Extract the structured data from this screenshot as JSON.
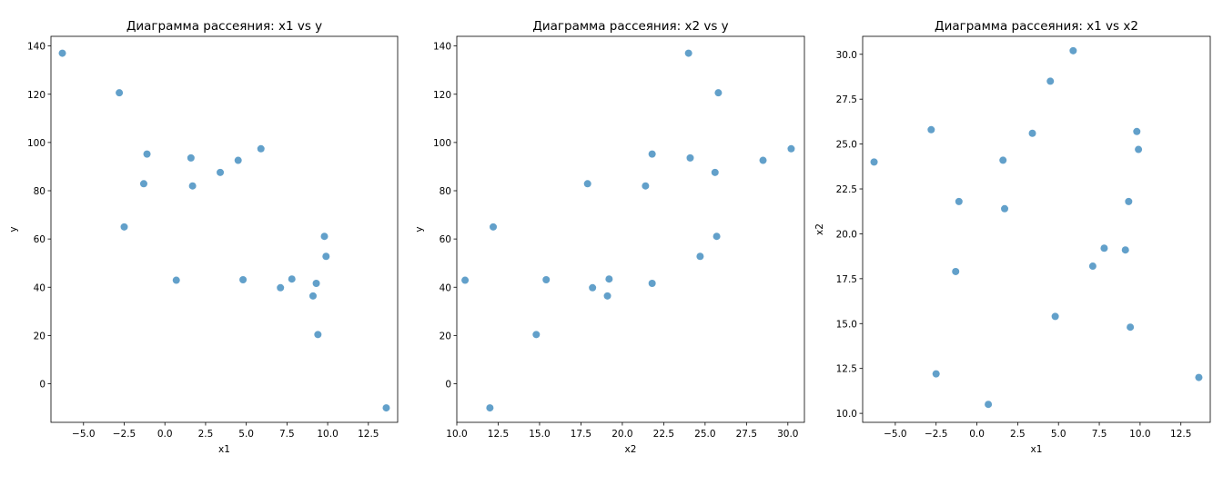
{
  "chart_data": [
    {
      "type": "scatter",
      "title": "Диаграмма рассеяния: x1 vs y",
      "xlabel": "x1",
      "ylabel": "y",
      "xlim": [
        -7.0,
        14.3
      ],
      "ylim": [
        -16.0,
        144.0
      ],
      "xticks": [
        -5.0,
        -2.5,
        0.0,
        2.5,
        5.0,
        7.5,
        10.0,
        12.5
      ],
      "xtick_labels": [
        "−5.0",
        "−2.5",
        "0.0",
        "2.5",
        "5.0",
        "7.5",
        "10.0",
        "12.5"
      ],
      "yticks": [
        0,
        20,
        40,
        60,
        80,
        100,
        120,
        140
      ],
      "ytick_labels": [
        "0",
        "20",
        "40",
        "60",
        "80",
        "100",
        "120",
        "140"
      ],
      "grid": false,
      "marker_color": "#1f77b4",
      "x": [
        -6.3,
        -2.8,
        -2.5,
        -1.3,
        -1.1,
        0.7,
        1.6,
        1.7,
        3.4,
        4.5,
        4.8,
        5.9,
        7.1,
        7.8,
        9.1,
        9.3,
        9.4,
        9.8,
        9.9,
        13.6
      ],
      "y": [
        137.0,
        120.6,
        65.0,
        82.9,
        95.2,
        42.9,
        93.6,
        82.0,
        87.6,
        92.6,
        43.1,
        97.4,
        39.8,
        43.4,
        36.4,
        41.6,
        20.4,
        61.1,
        52.8,
        -10.0
      ]
    },
    {
      "type": "scatter",
      "title": "Диаграмма рассеяния: x2 vs y",
      "xlabel": "x2",
      "ylabel": "y",
      "xlim": [
        10.0,
        31.0
      ],
      "ylim": [
        -16.0,
        144.0
      ],
      "xticks": [
        10.0,
        12.5,
        15.0,
        17.5,
        20.0,
        22.5,
        25.0,
        27.5,
        30.0
      ],
      "xtick_labels": [
        "10.0",
        "12.5",
        "15.0",
        "17.5",
        "20.0",
        "22.5",
        "25.0",
        "27.5",
        "30.0"
      ],
      "yticks": [
        0,
        20,
        40,
        60,
        80,
        100,
        120,
        140
      ],
      "ytick_labels": [
        "0",
        "20",
        "40",
        "60",
        "80",
        "100",
        "120",
        "140"
      ],
      "grid": false,
      "marker_color": "#1f77b4",
      "x": [
        24.0,
        25.8,
        12.2,
        17.9,
        21.8,
        10.5,
        24.1,
        21.4,
        25.6,
        28.5,
        15.4,
        30.2,
        18.2,
        19.2,
        19.1,
        21.8,
        14.8,
        25.7,
        24.7,
        12.0
      ],
      "y": [
        137.0,
        120.6,
        65.0,
        82.9,
        95.2,
        42.9,
        93.6,
        82.0,
        87.6,
        92.6,
        43.1,
        97.4,
        39.8,
        43.4,
        36.4,
        41.6,
        20.4,
        61.1,
        52.8,
        -10.0
      ]
    },
    {
      "type": "scatter",
      "title": "Диаграмма рассеяния: x1 vs x2",
      "xlabel": "x1",
      "ylabel": "x2",
      "xlim": [
        -7.0,
        14.3
      ],
      "ylim": [
        9.5,
        31.0
      ],
      "xticks": [
        -5.0,
        -2.5,
        0.0,
        2.5,
        5.0,
        7.5,
        10.0,
        12.5
      ],
      "xtick_labels": [
        "−5.0",
        "−2.5",
        "0.0",
        "2.5",
        "5.0",
        "7.5",
        "10.0",
        "12.5"
      ],
      "yticks": [
        10.0,
        12.5,
        15.0,
        17.5,
        20.0,
        22.5,
        25.0,
        27.5,
        30.0
      ],
      "ytick_labels": [
        "10.0",
        "12.5",
        "15.0",
        "17.5",
        "20.0",
        "22.5",
        "25.0",
        "27.5",
        "30.0"
      ],
      "grid": false,
      "marker_color": "#1f77b4",
      "x": [
        -6.3,
        -2.8,
        -2.5,
        -1.3,
        -1.1,
        0.7,
        1.6,
        1.7,
        3.4,
        4.5,
        4.8,
        5.9,
        7.1,
        7.8,
        9.1,
        9.3,
        9.4,
        9.8,
        9.9,
        13.6
      ],
      "y": [
        24.0,
        25.8,
        12.2,
        17.9,
        21.8,
        10.5,
        24.1,
        21.4,
        25.6,
        28.5,
        15.4,
        30.2,
        18.2,
        19.2,
        19.1,
        21.8,
        14.8,
        25.7,
        24.7,
        12.0
      ]
    }
  ]
}
